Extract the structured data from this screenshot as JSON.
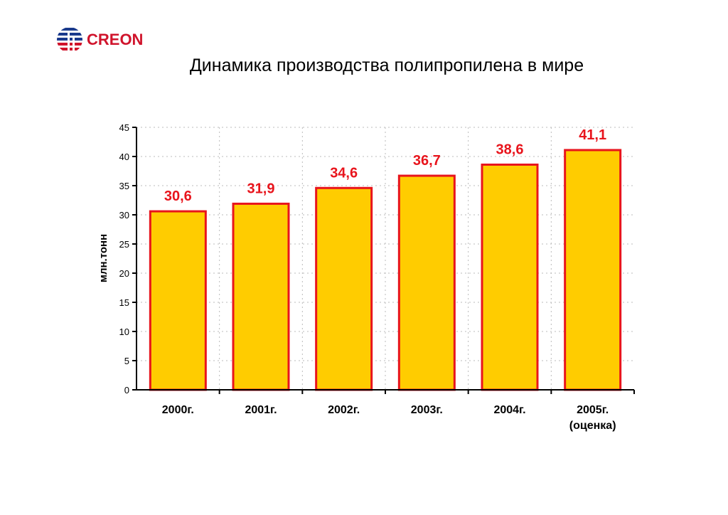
{
  "logo": {
    "text": "CREON"
  },
  "chart_data": {
    "type": "bar",
    "title": "Динамика производства полипропилена в мире",
    "xlabel": "",
    "ylabel": "млн.тонн",
    "categories": [
      "2000г.",
      "2001г.",
      "2002г.",
      "2003г.",
      "2004г.",
      "2005г.\n(оценка)"
    ],
    "values": [
      30.6,
      31.9,
      34.6,
      36.7,
      38.6,
      41.1
    ],
    "data_labels": [
      "30,6",
      "31,9",
      "34,6",
      "36,7",
      "38,6",
      "41,1"
    ],
    "ylim": [
      0,
      45
    ],
    "yticks": [
      0,
      5,
      10,
      15,
      20,
      25,
      30,
      35,
      40,
      45
    ],
    "grid": true,
    "colors": {
      "bar_fill": "#ffcc00",
      "bar_edge": "#e8141c",
      "label": "#e8141c"
    }
  }
}
